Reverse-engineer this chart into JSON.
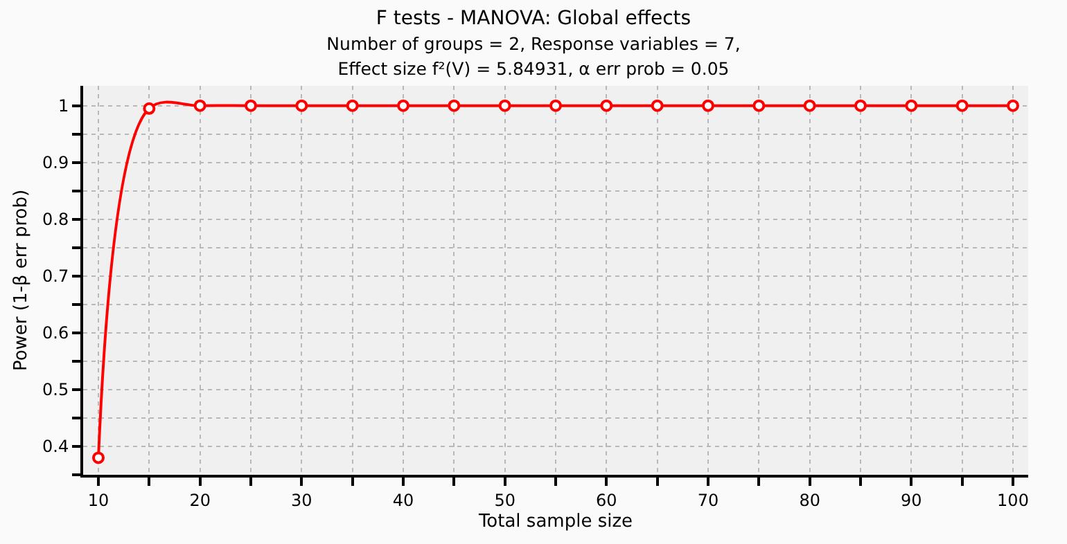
{
  "chart_data": {
    "type": "line",
    "title": "F tests - MANOVA: Global effects",
    "subtitle": "Number of groups = 2, Response variables = 7,\nEffect size f²(V) = 5.84931, α err prob = 0.05",
    "xlabel": "Total sample size",
    "ylabel": "Power (1-β err prob)",
    "x": [
      10,
      15,
      20,
      25,
      30,
      35,
      40,
      45,
      50,
      55,
      60,
      65,
      70,
      75,
      80,
      85,
      90,
      95,
      100
    ],
    "series": [
      {
        "color": "#ff0000",
        "values": [
          0.38,
          0.995,
          1,
          1,
          1,
          1,
          1,
          1,
          1,
          1,
          1,
          1,
          1,
          1,
          1,
          1,
          1,
          1,
          1
        ]
      }
    ],
    "xlim": [
      8.5,
      101.5
    ],
    "xticks": [
      10,
      {
        "value": 15,
        "label": null
      },
      20,
      {
        "value": 25,
        "label": null
      },
      30,
      {
        "value": 35,
        "label": null
      },
      40,
      {
        "value": 45,
        "label": null
      },
      50,
      {
        "value": 55,
        "label": null
      },
      60,
      {
        "value": 65,
        "label": null
      },
      70,
      {
        "value": 75,
        "label": null
      },
      80,
      {
        "value": 85,
        "label": null
      },
      90,
      {
        "value": 95,
        "label": null
      },
      100
    ],
    "ylim": [
      0.35,
      1.035
    ],
    "yticks": [
      {
        "value": 0.35,
        "label": null
      },
      0.4,
      {
        "value": 0.45,
        "label": null
      },
      0.5,
      {
        "value": 0.55,
        "label": null
      },
      0.6,
      {
        "value": 0.65,
        "label": null
      },
      0.7,
      {
        "value": 0.75,
        "label": null
      },
      0.8,
      {
        "value": 0.85,
        "label": null
      },
      0.9,
      {
        "value": 0.95,
        "label": null
      },
      1
    ],
    "grid": true,
    "marker": "circle",
    "line_style": "solid"
  }
}
